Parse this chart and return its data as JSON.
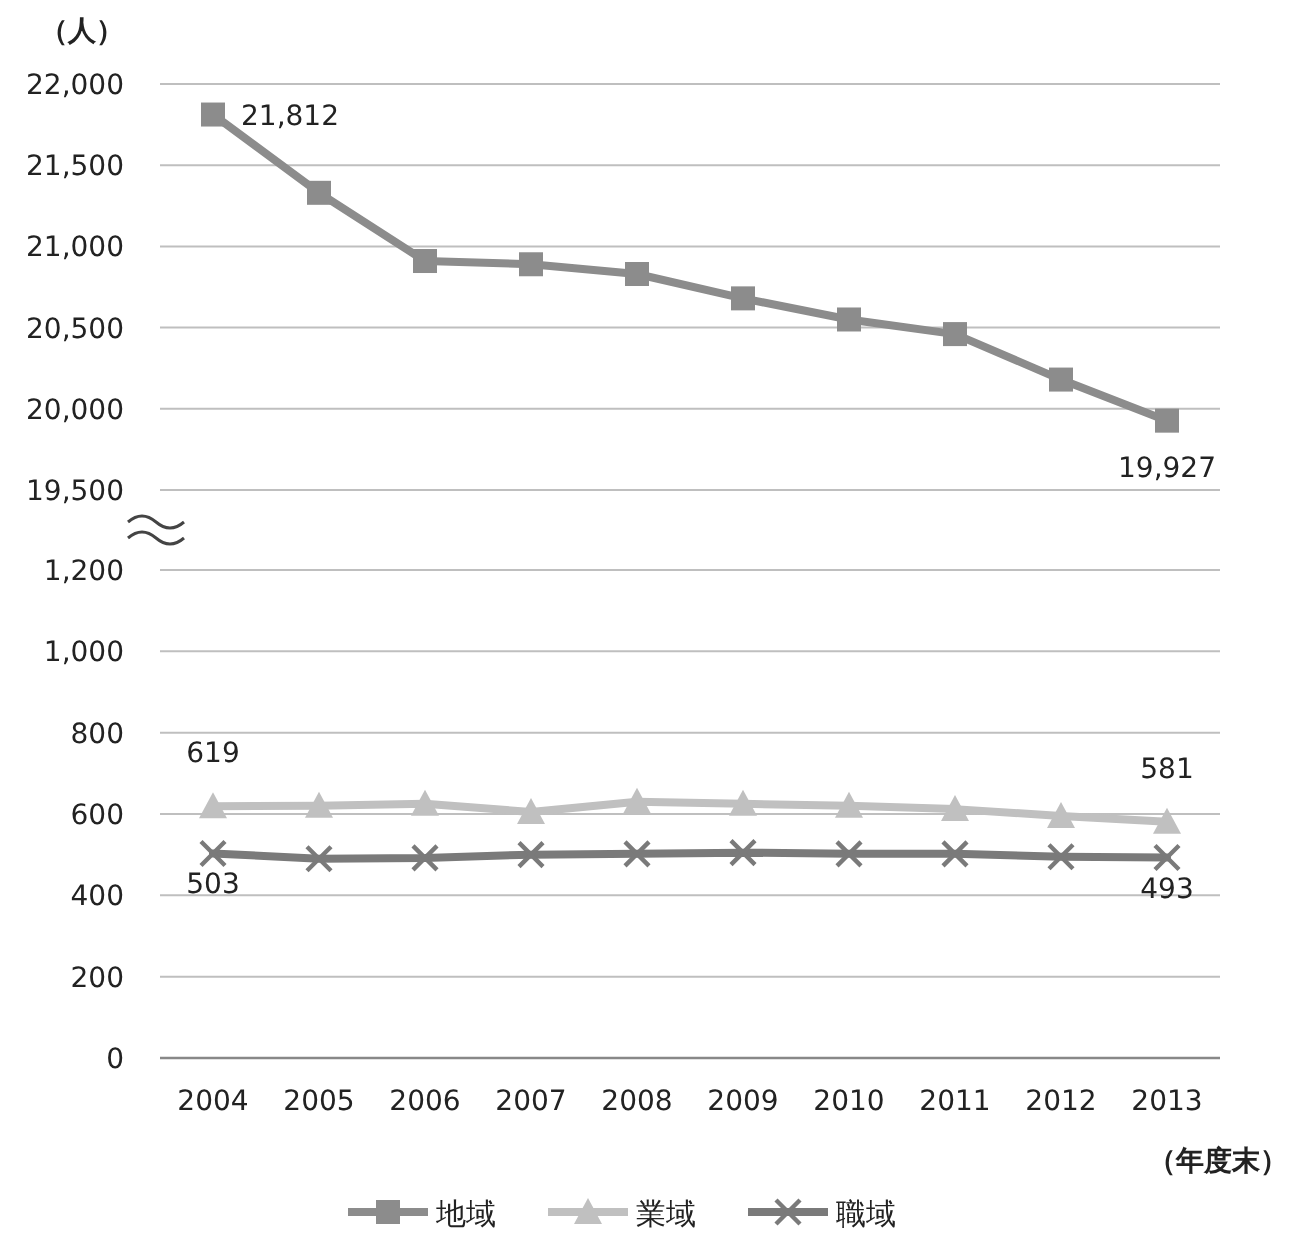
{
  "chart_data": [
    {
      "type": "line",
      "ylabel": "（人）",
      "categories": [
        null,
        null,
        null,
        null,
        null,
        null,
        null,
        null,
        null,
        null
      ],
      "series": [
        {
          "name": "地域",
          "color": "#8c8c8c",
          "marker": "square",
          "values": [
            21812,
            21330,
            20910,
            20890,
            20830,
            20680,
            20550,
            20460,
            20180,
            19927
          ],
          "value_labels": [
            "21,812",
            null,
            null,
            null,
            null,
            null,
            null,
            null,
            null,
            "19,927"
          ]
        }
      ],
      "ylim": [
        19500,
        22000
      ],
      "yticks": [
        {
          "value": 19500,
          "label": "19,500"
        },
        {
          "value": 20000,
          "label": "20,000"
        },
        {
          "value": 20500,
          "label": "20,500"
        },
        {
          "value": 21000,
          "label": "21,000"
        },
        {
          "value": 21500,
          "label": "21,500"
        },
        {
          "value": 22000,
          "label": "22,000"
        }
      ],
      "grid": "y",
      "legend": "bottom",
      "tick_labels": "y"
    },
    {
      "type": "line",
      "xlabel": "（年度末）",
      "categories": [
        "2004",
        "2005",
        "2006",
        "2007",
        "2008",
        "2009",
        "2010",
        "2011",
        "2012",
        "2013"
      ],
      "series": [
        {
          "name": "業域",
          "color": "#c0c0c0",
          "marker": "triangle",
          "values": [
            619,
            620,
            625,
            605,
            630,
            625,
            620,
            612,
            595,
            581
          ],
          "value_labels": [
            "619",
            null,
            null,
            null,
            null,
            null,
            null,
            null,
            null,
            "581"
          ]
        },
        {
          "name": "職域",
          "color": "#7a7a7a",
          "marker": "cross",
          "values": [
            503,
            490,
            492,
            500,
            502,
            505,
            502,
            502,
            495,
            493
          ],
          "value_labels": [
            "503",
            null,
            null,
            null,
            null,
            null,
            null,
            null,
            null,
            "493"
          ]
        }
      ],
      "ylim": [
        0,
        1200
      ],
      "yticks": [
        0,
        200,
        400,
        600,
        800,
        {
          "value": 1000,
          "label": "1,000"
        },
        {
          "value": 1200,
          "label": "1,200"
        }
      ],
      "grid": "y",
      "legend": "bottom"
    }
  ]
}
